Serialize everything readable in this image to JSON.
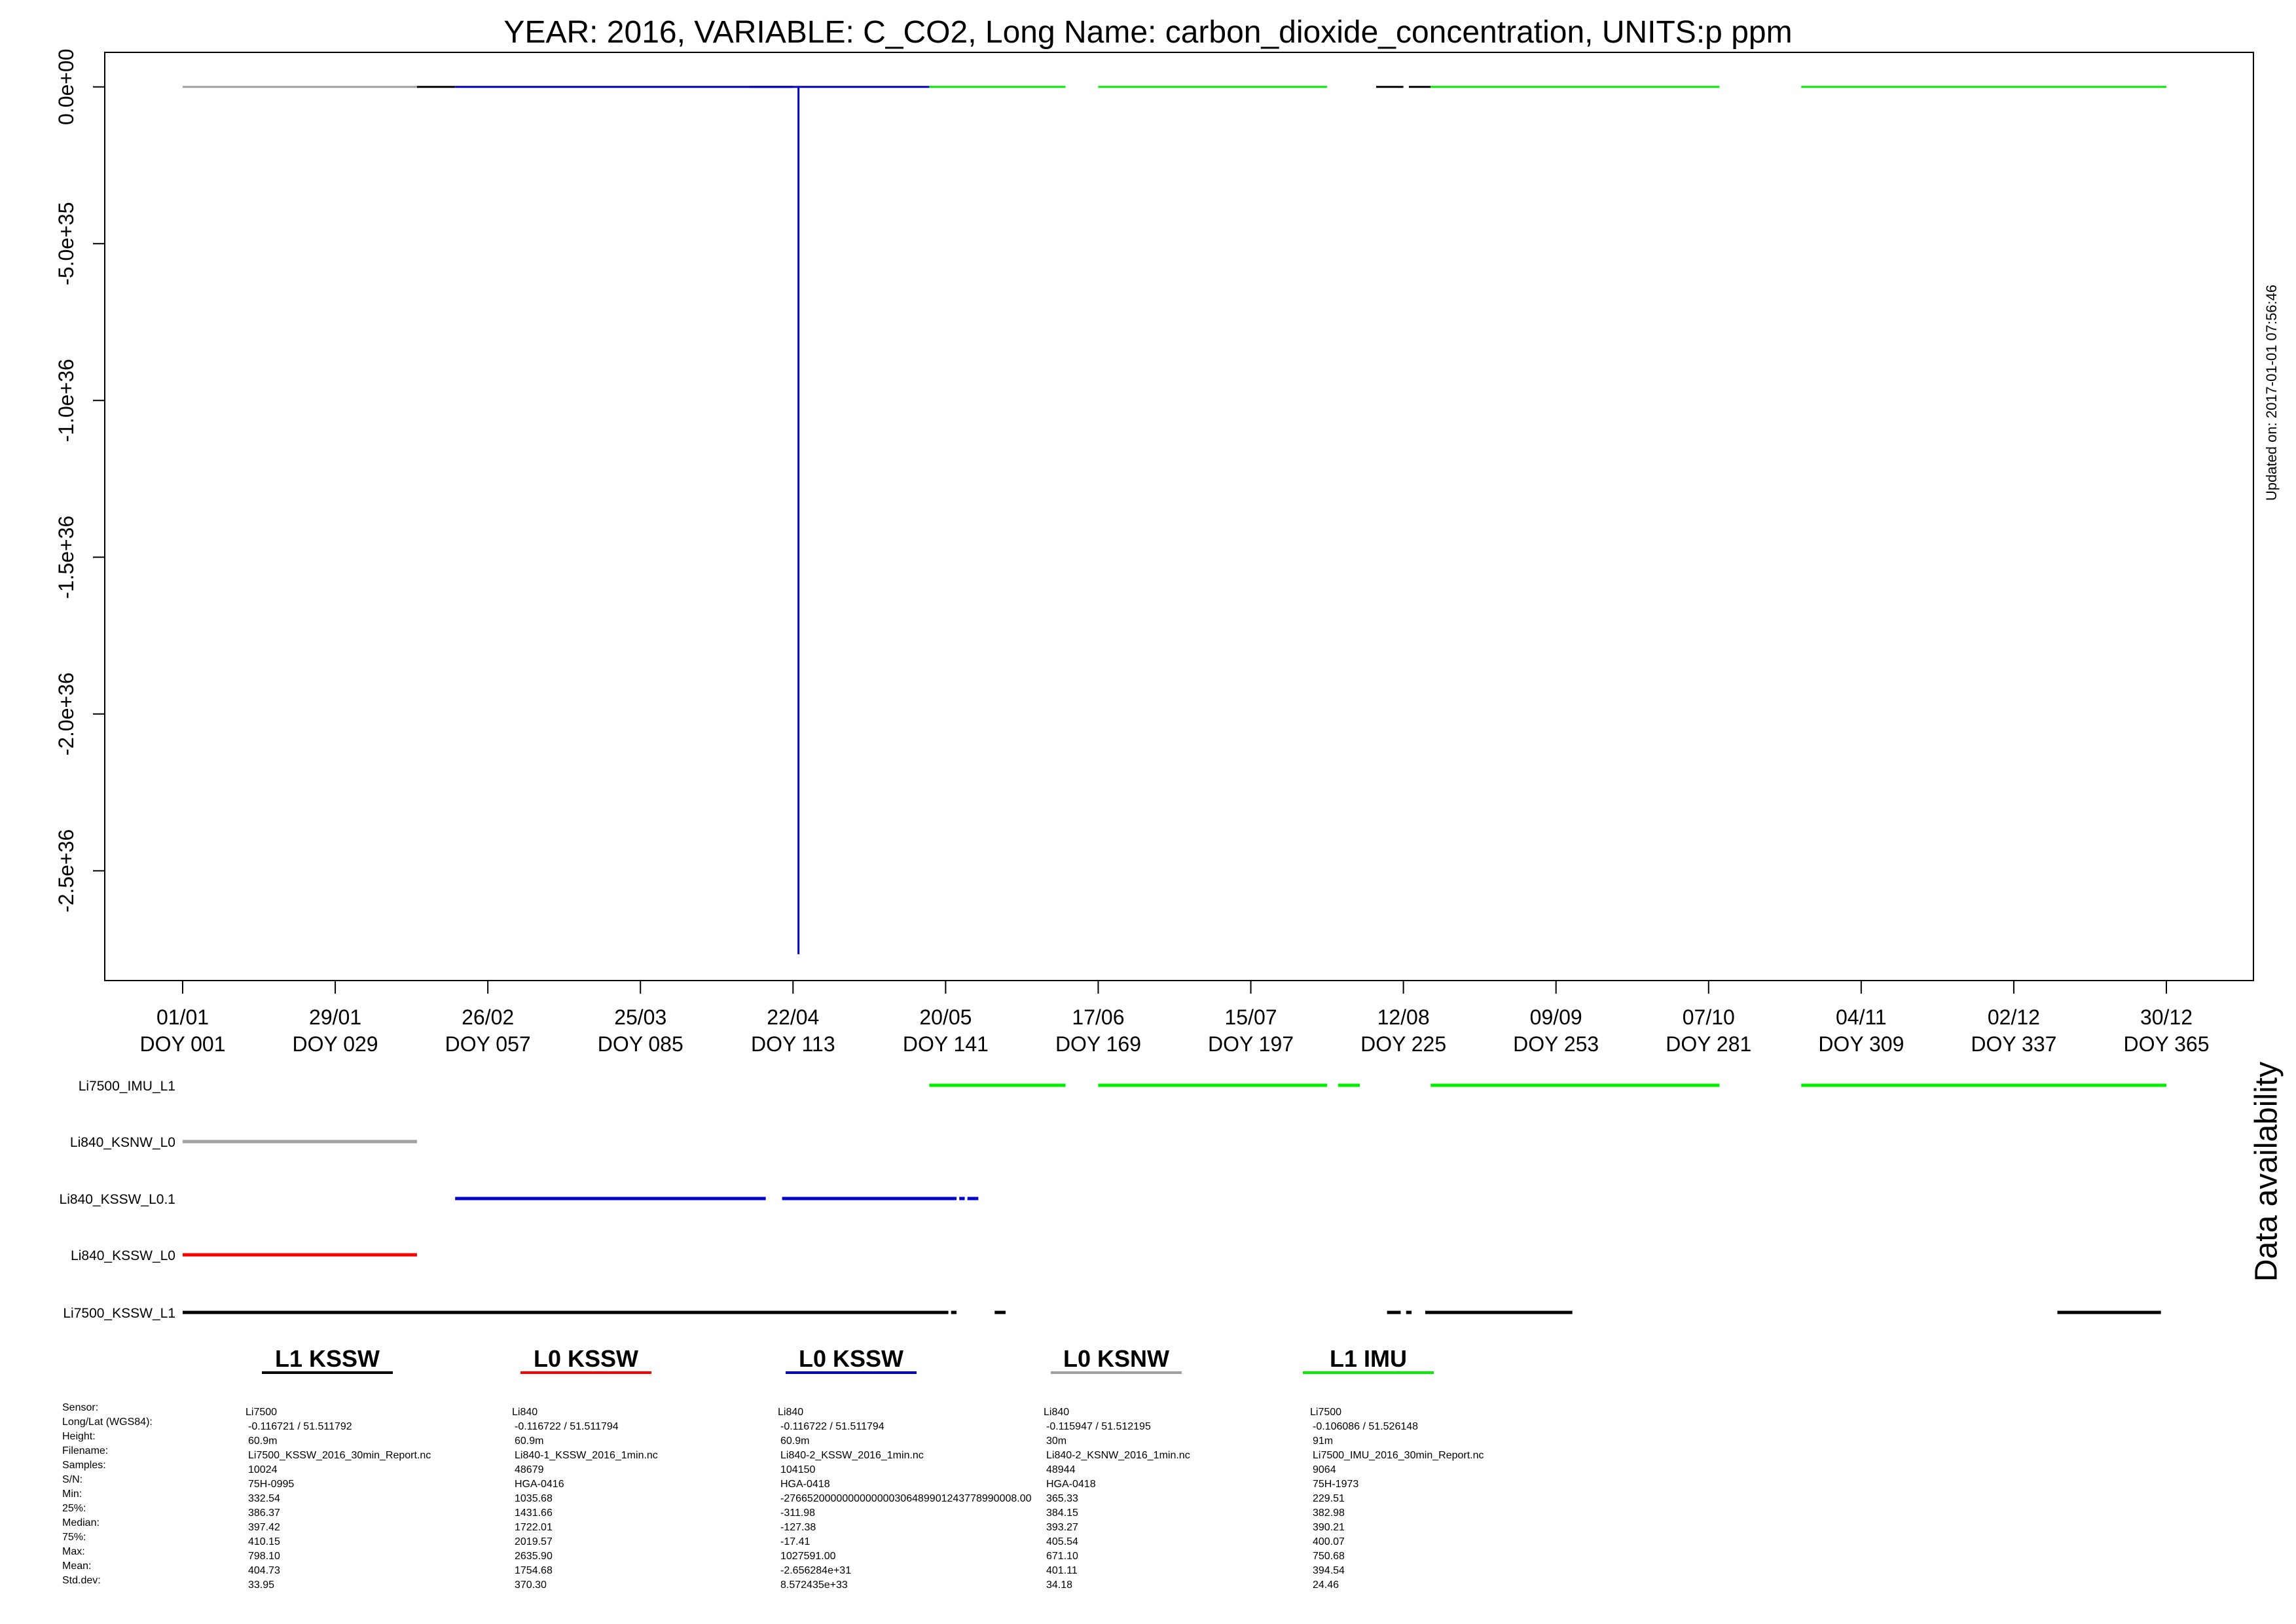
{
  "title": "YEAR: 2016, VARIABLE: C_CO2, Long Name: carbon_dioxide_concentration, UNITS:p ppm",
  "updated": "Updated on: 2017-01-01 07:56:46",
  "availability_label": "Data availability",
  "colors": {
    "L1_KSSW": "#000000",
    "L0_KSSW": "#ff0000",
    "L0_KSSW_2": "#0000cc",
    "L0_KSNW": "#a0a0a0",
    "L1_IMU": "#00ee00"
  },
  "chart_data": {
    "type": "line",
    "title": "YEAR: 2016, VARIABLE: C_CO2, Long Name: carbon_dioxide_concentration, UNITS:p ppm",
    "xlabel": "",
    "ylabel": "",
    "xlim": [
      1,
      366
    ],
    "ylim": [
      -2.85e+36,
      1.1e+35
    ],
    "x_ticks": [
      {
        "doy": 1,
        "date": "01/01",
        "label": "DOY 001"
      },
      {
        "doy": 29,
        "date": "29/01",
        "label": "DOY 029"
      },
      {
        "doy": 57,
        "date": "26/02",
        "label": "DOY 057"
      },
      {
        "doy": 85,
        "date": "25/03",
        "label": "DOY 085"
      },
      {
        "doy": 113,
        "date": "22/04",
        "label": "DOY 113"
      },
      {
        "doy": 141,
        "date": "20/05",
        "label": "DOY 141"
      },
      {
        "doy": 169,
        "date": "17/06",
        "label": "DOY 169"
      },
      {
        "doy": 197,
        "date": "15/07",
        "label": "DOY 197"
      },
      {
        "doy": 225,
        "date": "12/08",
        "label": "DOY 225"
      },
      {
        "doy": 253,
        "date": "09/09",
        "label": "DOY 253"
      },
      {
        "doy": 281,
        "date": "07/10",
        "label": "DOY 281"
      },
      {
        "doy": 309,
        "date": "04/11",
        "label": "DOY 309"
      },
      {
        "doy": 337,
        "date": "02/12",
        "label": "DOY 337"
      },
      {
        "doy": 365,
        "date": "30/12",
        "label": "DOY 365"
      }
    ],
    "y_ticks": [
      {
        "value": 0,
        "label": "0.0e+00"
      },
      {
        "value": -5e+35,
        "label": "-5.0e+35"
      },
      {
        "value": -1e+36,
        "label": "-1.0e+36"
      },
      {
        "value": -1.5e+36,
        "label": "-1.5e+36"
      },
      {
        "value": -2e+36,
        "label": "-2.0e+36"
      },
      {
        "value": -2.5e+36,
        "label": "-2.5e+36"
      }
    ],
    "series": [
      {
        "name": "Li840_KSNW_L0",
        "color": "#a0a0a0",
        "segments": [
          [
            1,
            44
          ]
        ]
      },
      {
        "name": "Li7500_KSSW_L1",
        "color": "#000000",
        "segments": [
          [
            44,
            51
          ],
          [
            105,
            113
          ],
          [
            220,
            225
          ],
          [
            226,
            230
          ]
        ]
      },
      {
        "name": "Li840_KSSW_L0.1",
        "color": "#0000cc",
        "segments": [
          [
            51,
            138
          ]
        ]
      },
      {
        "name": "Li7500_IMU_L1",
        "color": "#00ee00",
        "segments": [
          [
            138,
            163
          ],
          [
            169,
            211
          ],
          [
            230,
            283
          ],
          [
            298,
            365
          ]
        ]
      }
    ],
    "spike": {
      "series": "Li840_KSSW_L0.1",
      "doy": 114,
      "value": -2.766e+36
    },
    "availability": {
      "rows": [
        {
          "name": "Li7500_IMU_L1",
          "color": "#00ee00",
          "segments": [
            [
              138,
              163
            ],
            [
              169,
              211
            ],
            [
              213,
              217
            ],
            [
              230,
              283
            ],
            [
              298,
              365
            ]
          ]
        },
        {
          "name": "Li840_KSNW_L0",
          "color": "#a0a0a0",
          "segments": [
            [
              1,
              44
            ]
          ]
        },
        {
          "name": "Li840_KSSW_L0.1",
          "color": "#0000cc",
          "segments": [
            [
              51,
              108
            ],
            [
              111,
              143
            ],
            [
              143.5,
              144.5
            ],
            [
              145,
              147
            ]
          ]
        },
        {
          "name": "Li840_KSSW_L0",
          "color": "#ff0000",
          "segments": [
            [
              1,
              44
            ]
          ]
        },
        {
          "name": "Li7500_KSSW_L1",
          "color": "#000000",
          "segments": [
            [
              1,
              141.5
            ],
            [
              142,
              143
            ],
            [
              150,
              152
            ],
            [
              222,
              224.5
            ],
            [
              225.5,
              226.5
            ],
            [
              229,
              256
            ],
            [
              345,
              364
            ]
          ]
        }
      ]
    }
  },
  "legend": [
    {
      "label": "L1 KSSW",
      "color": "#000000"
    },
    {
      "label": "L0 KSSW",
      "color": "#ff0000"
    },
    {
      "label": "L0 KSSW",
      "color": "#0000cc"
    },
    {
      "label": "L0 KSNW",
      "color": "#a0a0a0"
    },
    {
      "label": "L1 IMU",
      "color": "#00ee00"
    }
  ],
  "stats": {
    "labels": [
      "Sensor:",
      "Long/Lat (WGS84):",
      "Height:",
      "Filename:",
      "Samples:",
      "S/N:",
      "Min:",
      "25%:",
      "Median:",
      "75%:",
      "Max:",
      "Mean:",
      "Std.dev:"
    ],
    "columns": [
      [
        "Li7500",
        "-0.116721 / 51.511792",
        "60.9m",
        "Li7500_KSSW_2016_30min_Report.nc",
        "10024",
        "75H-0995",
        "332.54",
        "386.37",
        "397.42",
        "410.15",
        "798.10",
        "404.73",
        "33.95"
      ],
      [
        "Li840",
        "-0.116722 / 51.511794",
        "60.9m",
        "Li840-1_KSSW_2016_1min.nc",
        "48679",
        "HGA-0416",
        "1035.68",
        "1431.66",
        "1722.01",
        "2019.57",
        "2635.90",
        "1754.68",
        "370.30"
      ],
      [
        "Li840",
        "-0.116722 / 51.511794",
        "60.9m",
        "Li840-2_KSSW_2016_1min.nc",
        "104150",
        "HGA-0418",
        "-2766520000000000000306489901243778990008.00",
        "-311.98",
        "-127.38",
        "-17.41",
        "1027591.00",
        "-2.656284e+31",
        "8.572435e+33"
      ],
      [
        "Li840",
        "-0.115947 / 51.512195",
        "30m",
        "Li840-2_KSNW_2016_1min.nc",
        "48944",
        "HGA-0418",
        "365.33",
        "384.15",
        "393.27",
        "405.54",
        "671.10",
        "401.11",
        "34.18"
      ],
      [
        "Li7500",
        "-0.106086 / 51.526148",
        "91m",
        "Li7500_IMU_2016_30min_Report.nc",
        "9064",
        "75H-1973",
        "229.51",
        "382.98",
        "390.21",
        "400.07",
        "750.68",
        "394.54",
        "24.46"
      ]
    ]
  }
}
